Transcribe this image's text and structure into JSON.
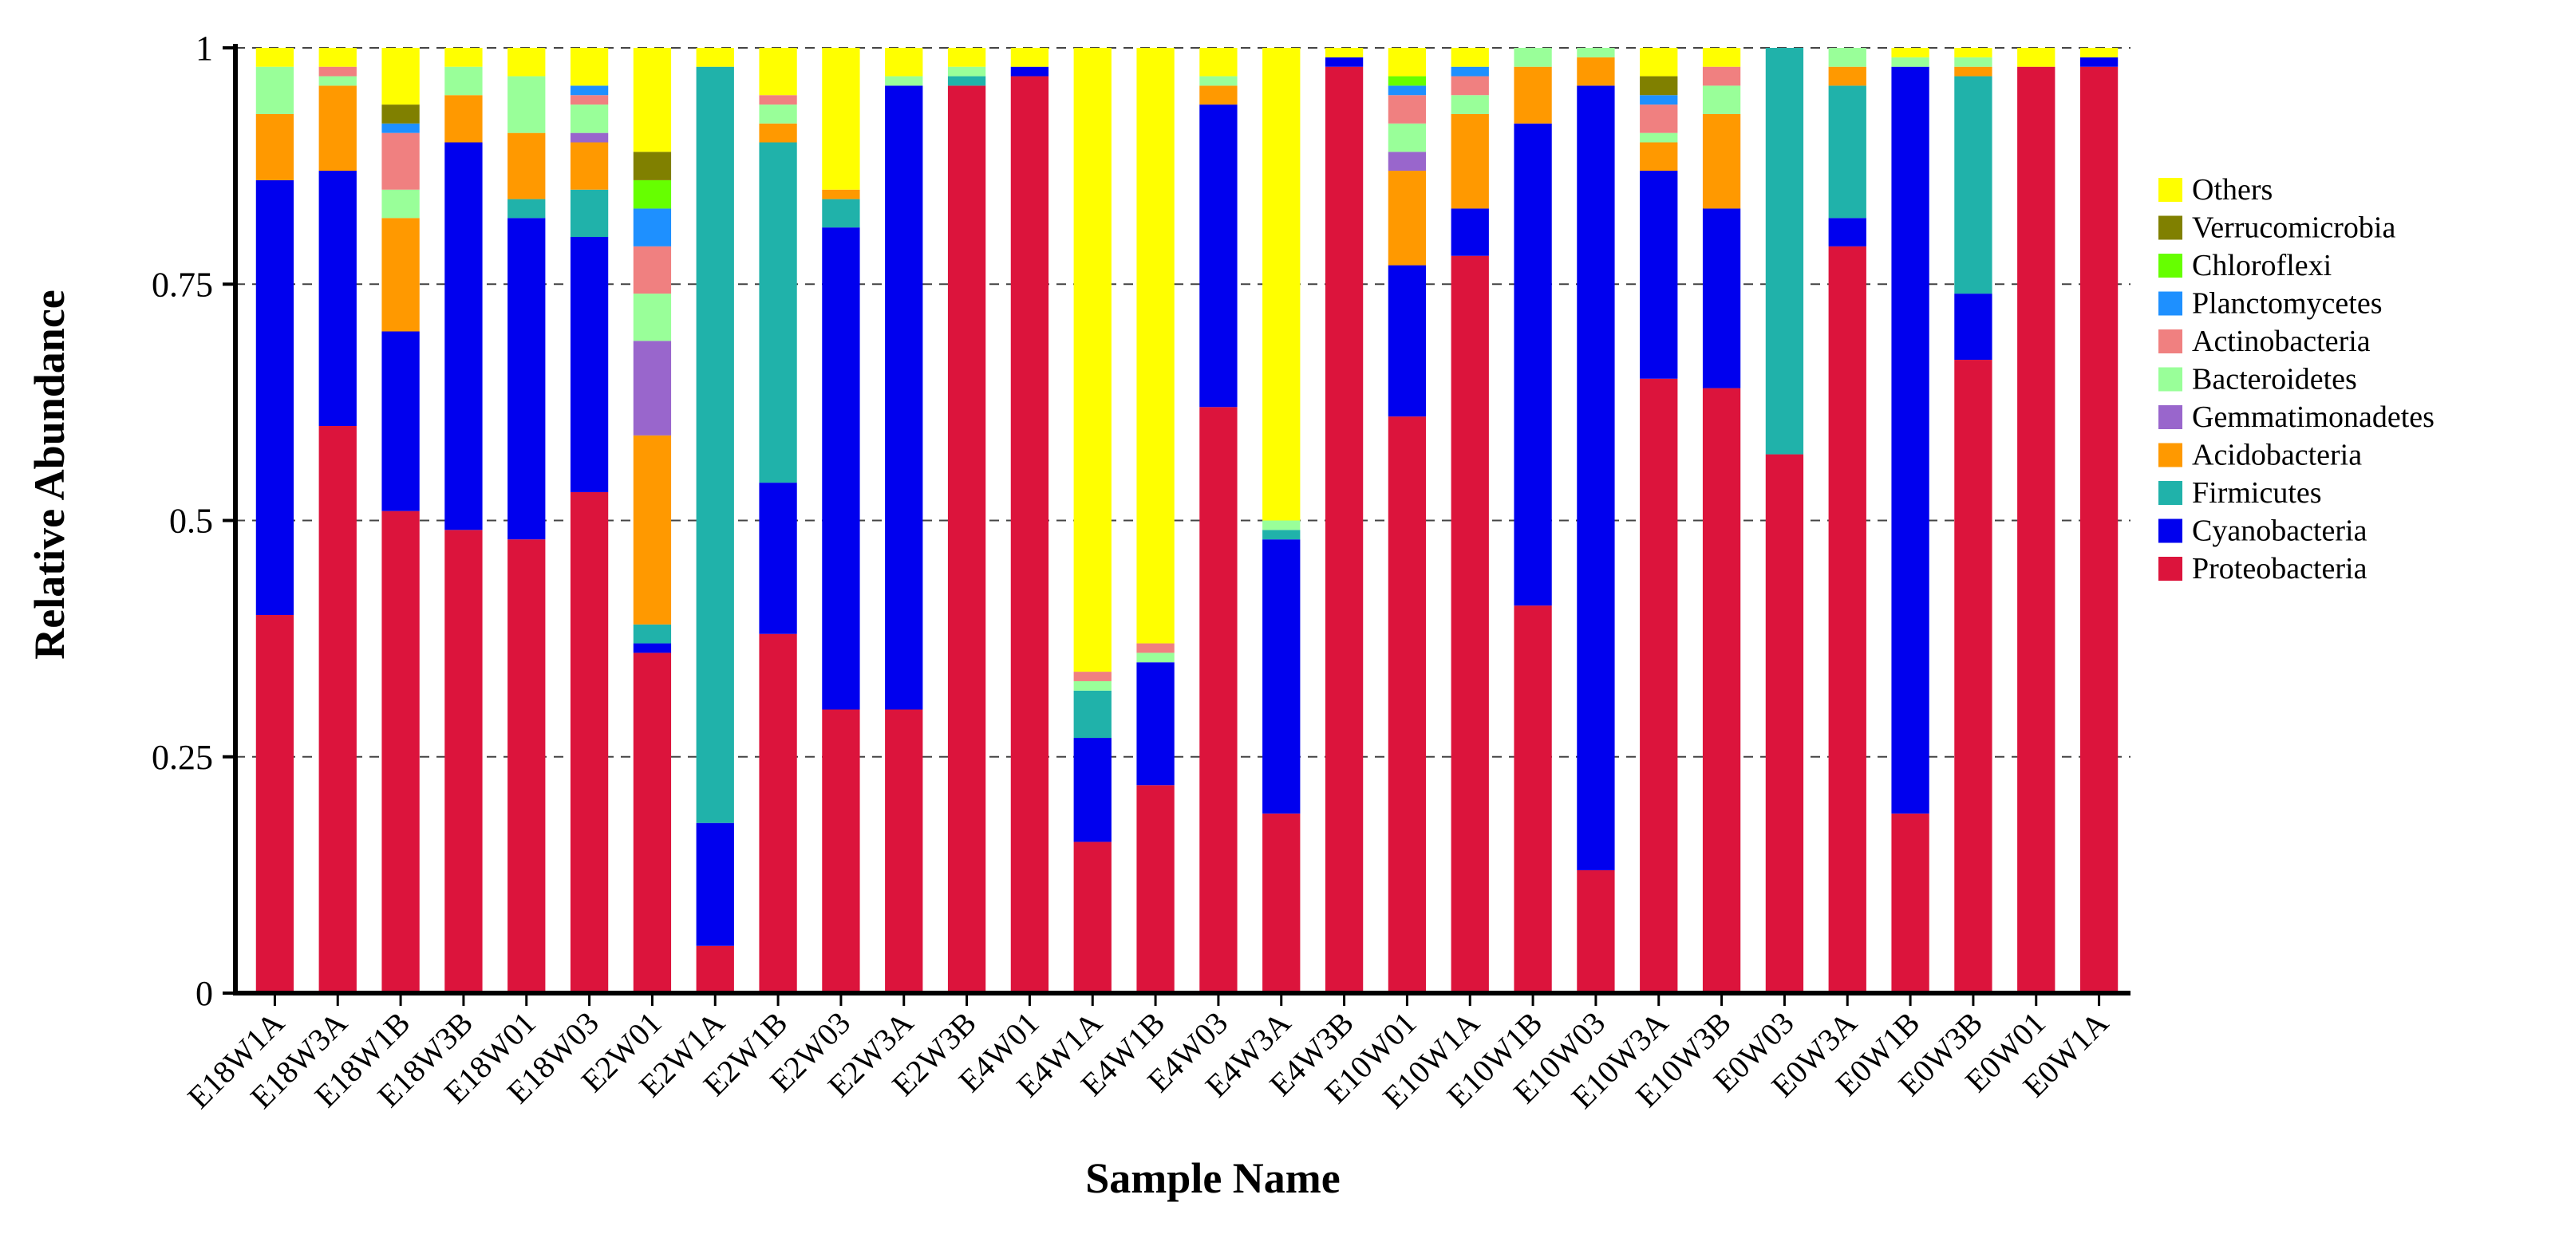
{
  "chart_data": {
    "type": "bar",
    "stacked": true,
    "title": "",
    "xlabel": "Sample Name",
    "ylabel": "Relative Abundance",
    "ylim": [
      0,
      1
    ],
    "yticks": [
      0,
      0.25,
      0.5,
      0.75,
      1
    ],
    "ytick_labels": [
      "0",
      "0.25",
      "0.5",
      "0.75",
      "1"
    ],
    "gridlines": "dashed",
    "legend_position": "right",
    "categories": [
      "E18W1A",
      "E18W3A",
      "E18W1B",
      "E18W3B",
      "E18W01",
      "E18W03",
      "E2W01",
      "E2W1A",
      "E2W1B",
      "E2W03",
      "E2W3A",
      "E2W3B",
      "E4W01",
      "E4W1A",
      "E4W1B",
      "E4W03",
      "E4W3A",
      "E4W3B",
      "E10W01",
      "E10W1A",
      "E10W1B",
      "E10W03",
      "E10W3A",
      "E10W3B",
      "E0W03",
      "E0W3A",
      "E0W1B",
      "E0W3B",
      "E0W01",
      "E0W1A"
    ],
    "series": [
      {
        "name": "Proteobacteria",
        "color": "#DC143C",
        "values": [
          0.4,
          0.6,
          0.51,
          0.49,
          0.48,
          0.53,
          0.36,
          0.05,
          0.38,
          0.3,
          0.3,
          0.96,
          0.97,
          0.16,
          0.22,
          0.62,
          0.19,
          0.98,
          0.61,
          0.78,
          0.41,
          0.13,
          0.65,
          0.64,
          0.57,
          0.79,
          0.19,
          0.67,
          0.98,
          0.98
        ]
      },
      {
        "name": "Cyanobacteria",
        "color": "#0000EE",
        "values": [
          0.46,
          0.27,
          0.19,
          0.41,
          0.34,
          0.27,
          0.01,
          0.13,
          0.16,
          0.51,
          0.66,
          0.0,
          0.01,
          0.11,
          0.13,
          0.32,
          0.29,
          0.01,
          0.16,
          0.05,
          0.51,
          0.83,
          0.22,
          0.19,
          0.0,
          0.03,
          0.79,
          0.07,
          0.0,
          0.01
        ]
      },
      {
        "name": "Firmicutes",
        "color": "#20B2AA",
        "values": [
          0.0,
          0.0,
          0.0,
          0.0,
          0.02,
          0.05,
          0.02,
          0.8,
          0.36,
          0.03,
          0.0,
          0.01,
          0.0,
          0.05,
          0.0,
          0.0,
          0.01,
          0.0,
          0.0,
          0.0,
          0.0,
          0.0,
          0.0,
          0.0,
          0.43,
          0.14,
          0.0,
          0.23,
          0.0,
          0.0
        ]
      },
      {
        "name": "Acidobacteria",
        "color": "#FF9900",
        "values": [
          0.07,
          0.09,
          0.12,
          0.05,
          0.07,
          0.05,
          0.2,
          0.0,
          0.02,
          0.01,
          0.0,
          0.0,
          0.0,
          0.0,
          0.0,
          0.02,
          0.0,
          0.0,
          0.1,
          0.1,
          0.06,
          0.03,
          0.03,
          0.1,
          0.0,
          0.02,
          0.0,
          0.01,
          0.0,
          0.0
        ]
      },
      {
        "name": "Gemmatimonadetes",
        "color": "#9966CC",
        "values": [
          0.0,
          0.0,
          0.0,
          0.0,
          0.0,
          0.01,
          0.1,
          0.0,
          0.0,
          0.0,
          0.0,
          0.0,
          0.0,
          0.0,
          0.0,
          0.0,
          0.0,
          0.0,
          0.02,
          0.0,
          0.0,
          0.0,
          0.0,
          0.0,
          0.0,
          0.0,
          0.0,
          0.0,
          0.0,
          0.0
        ]
      },
      {
        "name": "Bacteroidetes",
        "color": "#99FF99",
        "values": [
          0.05,
          0.01,
          0.03,
          0.03,
          0.06,
          0.03,
          0.05,
          0.0,
          0.02,
          0.0,
          0.01,
          0.01,
          0.0,
          0.01,
          0.01,
          0.01,
          0.01,
          0.0,
          0.03,
          0.02,
          0.02,
          0.01,
          0.01,
          0.03,
          0.0,
          0.02,
          0.01,
          0.01,
          0.0,
          0.0
        ]
      },
      {
        "name": "Actinobacteria",
        "color": "#F08080",
        "values": [
          0.0,
          0.01,
          0.06,
          0.0,
          0.0,
          0.01,
          0.05,
          0.0,
          0.01,
          0.0,
          0.0,
          0.0,
          0.0,
          0.01,
          0.01,
          0.0,
          0.0,
          0.0,
          0.03,
          0.02,
          0.0,
          0.0,
          0.03,
          0.02,
          0.0,
          0.0,
          0.0,
          0.0,
          0.0,
          0.0
        ]
      },
      {
        "name": "Planctomycetes",
        "color": "#1E90FF",
        "values": [
          0.0,
          0.0,
          0.01,
          0.0,
          0.0,
          0.01,
          0.04,
          0.0,
          0.0,
          0.0,
          0.0,
          0.0,
          0.0,
          0.0,
          0.0,
          0.0,
          0.0,
          0.0,
          0.01,
          0.01,
          0.0,
          0.0,
          0.01,
          0.0,
          0.0,
          0.0,
          0.0,
          0.0,
          0.0,
          0.0
        ]
      },
      {
        "name": "Chloroflexi",
        "color": "#66FF00",
        "values": [
          0.0,
          0.0,
          0.0,
          0.0,
          0.0,
          0.0,
          0.03,
          0.0,
          0.0,
          0.0,
          0.0,
          0.0,
          0.0,
          0.0,
          0.0,
          0.0,
          0.0,
          0.0,
          0.01,
          0.0,
          0.0,
          0.0,
          0.0,
          0.0,
          0.0,
          0.0,
          0.0,
          0.0,
          0.0,
          0.0
        ]
      },
      {
        "name": "Verrucomicrobia",
        "color": "#808000",
        "values": [
          0.0,
          0.0,
          0.02,
          0.0,
          0.0,
          0.0,
          0.03,
          0.0,
          0.0,
          0.0,
          0.0,
          0.0,
          0.0,
          0.0,
          0.0,
          0.0,
          0.0,
          0.0,
          0.0,
          0.0,
          0.0,
          0.0,
          0.02,
          0.0,
          0.0,
          0.0,
          0.0,
          0.0,
          0.0,
          0.0
        ]
      },
      {
        "name": "Others",
        "color": "#FFFF00",
        "values": [
          0.02,
          0.02,
          0.06,
          0.02,
          0.03,
          0.04,
          0.11,
          0.02,
          0.05,
          0.15,
          0.03,
          0.02,
          0.02,
          0.66,
          0.63,
          0.03,
          0.5,
          0.01,
          0.03,
          0.02,
          0.0,
          0.0,
          0.03,
          0.02,
          0.0,
          0.0,
          0.01,
          0.01,
          0.02,
          0.01
        ]
      }
    ]
  }
}
